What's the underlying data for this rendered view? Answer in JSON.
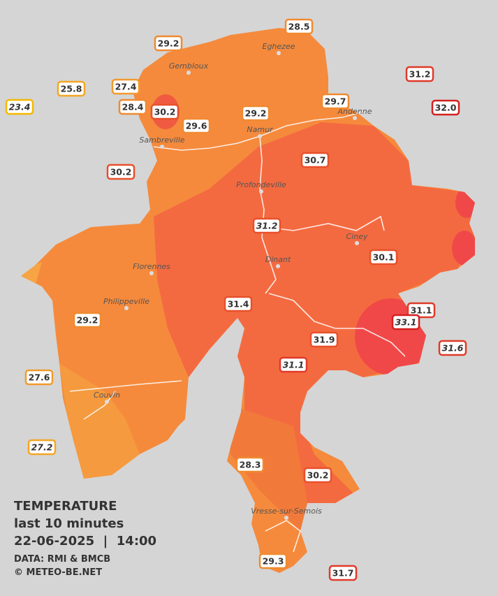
{
  "legend": {
    "title": "TEMPERATURE",
    "period": "last 10 minutes",
    "datetime": "22-06-2025  |  14:00",
    "source": "DATA: RMI & BMCB",
    "credit": "© METEO-BE.NET"
  },
  "cities": [
    "Eghezee",
    "Gembloux",
    "Andenne",
    "Namur",
    "Sambreville",
    "Profondeville",
    "Ciney",
    "Dinant",
    "Florennes",
    "Philippeville",
    "Couvin",
    "Vresse-sur-Semois"
  ],
  "stations": [
    {
      "label": "28.5",
      "color": "#f08a30"
    },
    {
      "label": "29.2",
      "color": "#f08a30"
    },
    {
      "label": "25.8",
      "color": "#f5a623"
    },
    {
      "label": "27.4",
      "color": "#f29a2c"
    },
    {
      "label": "23.4",
      "color": "#f5b800",
      "italic": true
    },
    {
      "label": "28.4",
      "color": "#f08a30"
    },
    {
      "label": "30.2",
      "color": "#e8502a"
    },
    {
      "label": "29.6",
      "color": "#f08a30"
    },
    {
      "label": "29.2",
      "color": "#f08a30"
    },
    {
      "label": "29.7",
      "color": "#f08a30"
    },
    {
      "label": "31.2",
      "color": "#e03a2a"
    },
    {
      "label": "32.0",
      "color": "#d42020"
    },
    {
      "label": "30.2",
      "color": "#e8502a"
    },
    {
      "label": "30.7",
      "color": "#e8502a"
    },
    {
      "label": "31.2",
      "color": "#e8502a",
      "italic": true
    },
    {
      "label": "30.1",
      "color": "#e8502a"
    },
    {
      "label": "31.4",
      "color": "#e8502a"
    },
    {
      "label": "29.2",
      "color": "#f08a30"
    },
    {
      "label": "31.1",
      "color": "#e03a2a"
    },
    {
      "label": "33.1",
      "color": "#d42020",
      "italic": true
    },
    {
      "label": "31.6",
      "color": "#e03a2a",
      "italic": true
    },
    {
      "label": "31.9",
      "color": "#e8502a"
    },
    {
      "label": "31.1",
      "color": "#e03a2a",
      "italic": true
    },
    {
      "label": "27.6",
      "color": "#f29a2c"
    },
    {
      "label": "27.2",
      "color": "#f5a623",
      "italic": true
    },
    {
      "label": "28.3",
      "color": "#f08a30"
    },
    {
      "label": "30.2",
      "color": "#e8502a"
    },
    {
      "label": "29.3",
      "color": "#f08a30"
    },
    {
      "label": "31.7",
      "color": "#e03a2a"
    }
  ]
}
